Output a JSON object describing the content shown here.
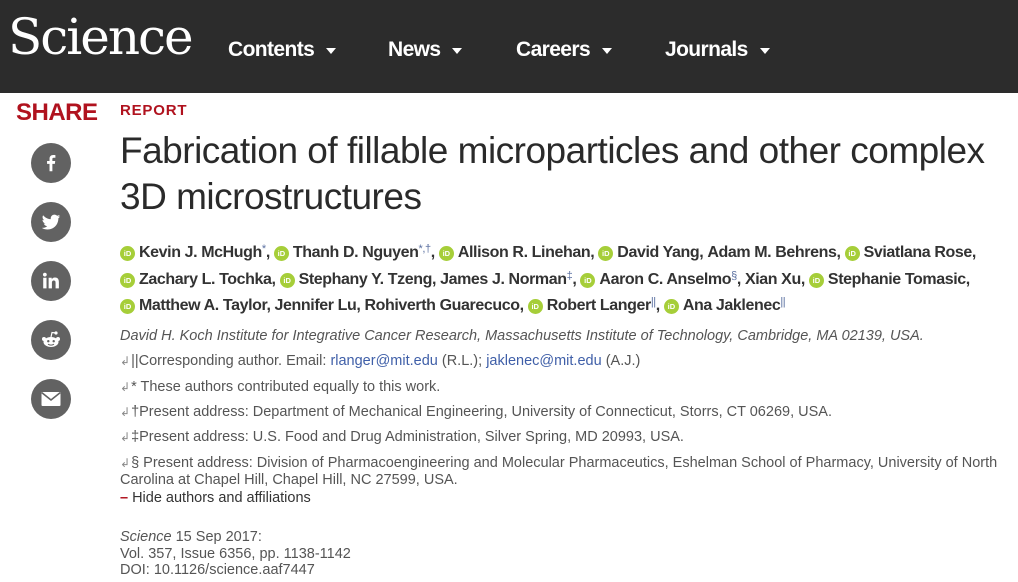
{
  "header": {
    "logo": "Science",
    "nav": [
      {
        "label": "Contents"
      },
      {
        "label": "News"
      },
      {
        "label": "Careers"
      },
      {
        "label": "Journals"
      }
    ]
  },
  "share": {
    "label": "SHARE",
    "buttons": [
      "facebook-icon",
      "twitter-icon",
      "linkedin-icon",
      "reddit-icon",
      "email-icon"
    ]
  },
  "article": {
    "type": "REPORT",
    "title": "Fabrication of fillable microparticles and other complex 3D microstructures",
    "orcid_label": "iD",
    "authors": [
      {
        "name": "Kevin J. McHugh",
        "sup": "*",
        "orcid": true
      },
      {
        "name": "Thanh D. Nguyen",
        "sup": "*,†",
        "orcid": true
      },
      {
        "name": "Allison R. Linehan",
        "sup": "",
        "orcid": true
      },
      {
        "name": "David Yang",
        "sup": "",
        "orcid": true
      },
      {
        "name": "Adam M. Behrens",
        "sup": "",
        "orcid": false
      },
      {
        "name": "Sviatlana Rose",
        "sup": "",
        "orcid": true
      },
      {
        "name": "Zachary L. Tochka",
        "sup": "",
        "orcid": true
      },
      {
        "name": "Stephany Y. Tzeng",
        "sup": "",
        "orcid": true
      },
      {
        "name": "James J. Norman",
        "sup": "‡",
        "orcid": false
      },
      {
        "name": "Aaron C. Anselmo",
        "sup": "§",
        "orcid": true
      },
      {
        "name": "Xian Xu",
        "sup": "",
        "orcid": false
      },
      {
        "name": "Stephanie Tomasic",
        "sup": "",
        "orcid": true
      },
      {
        "name": "Matthew A. Taylor",
        "sup": "",
        "orcid": true
      },
      {
        "name": "Jennifer Lu",
        "sup": "",
        "orcid": false
      },
      {
        "name": "Rohiverth Guarecuco",
        "sup": "",
        "orcid": false
      },
      {
        "name": "Robert Langer",
        "sup": "||",
        "orcid": true
      },
      {
        "name": "Ana Jaklenec",
        "sup": "||",
        "orcid": true
      }
    ],
    "affiliation": "David H. Koch Institute for Integrative Cancer Research, Massachusetts Institute of Technology, Cambridge, MA 02139, USA.",
    "notes": {
      "return_glyph": "↲",
      "corresponding_prefix": "||Corresponding author. Email: ",
      "email1": "rlanger@mit.edu",
      "mid": " (R.L.); ",
      "email2": "jaklenec@mit.edu",
      "suffix": " (A.J.)",
      "equal": "* These authors contributed equally to this work.",
      "dagger": "†Present address: Department of Mechanical Engineering, University of Connecticut, Storrs, CT 06269, USA.",
      "ddagger": "‡Present address: U.S. Food and Drug Administration, Silver Spring, MD 20993, USA.",
      "section": "§ Present address: Division of Pharmacoengineering and Molecular Pharmaceutics, Eshelman School of Pharmacy, University of North Carolina at Chapel Hill, Chapel Hill, NC 27599, USA."
    },
    "hide_toggle": {
      "dash": "–",
      "label": "Hide authors and affiliations"
    },
    "citation": {
      "journal": "Science",
      "date": " 15 Sep 2017:",
      "volume": "Vol. 357, Issue 6356, pp. 1138-1142",
      "doi": "DOI: 10.1126/science.aaf7447"
    }
  }
}
